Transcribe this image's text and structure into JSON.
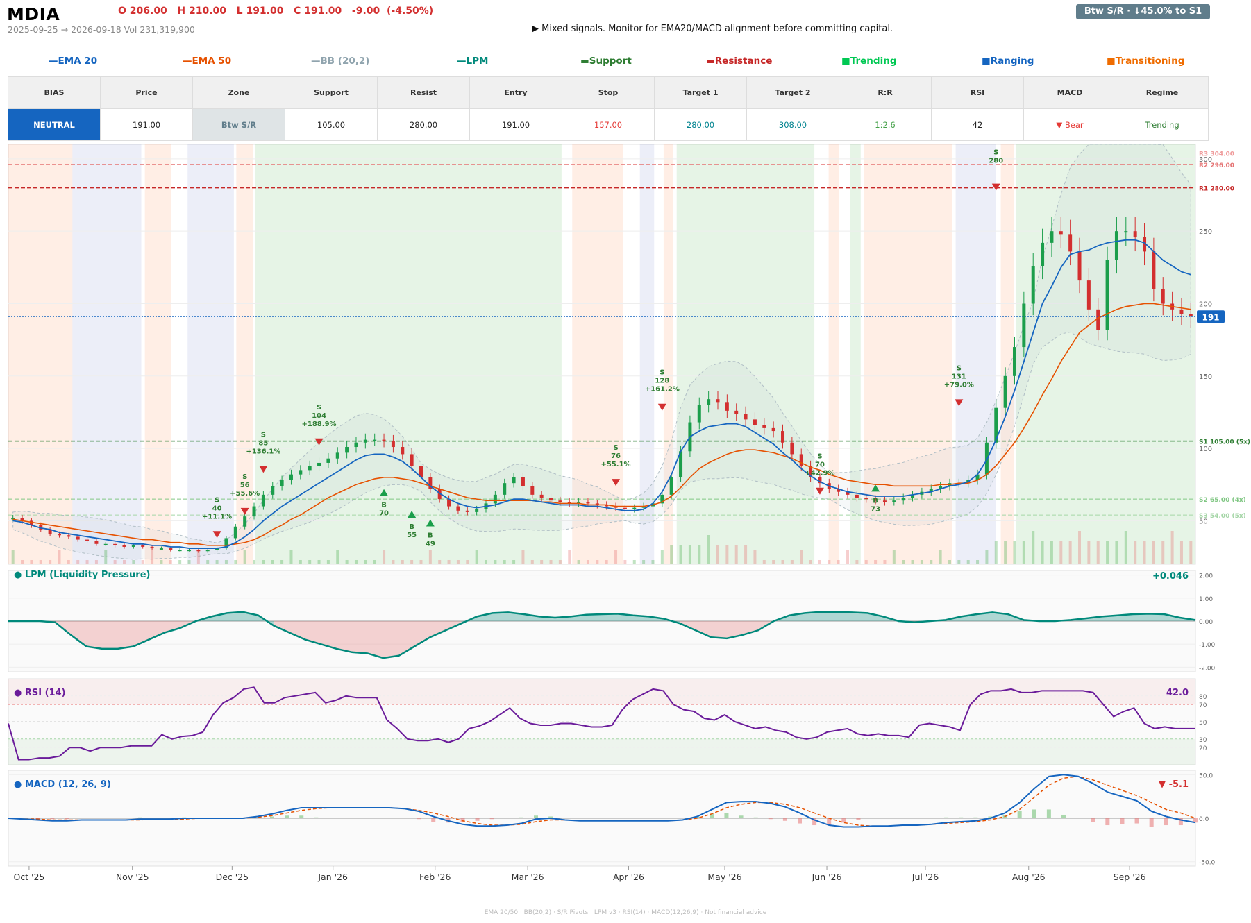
{
  "header": {
    "ticker": "MDIA",
    "ohlc": "O 206.00   H 210.00   L 191.00   C 191.00   -9.00  (-4.50%)",
    "date_range": "2025-09-25 → 2026-09-18   Vol 231,319,900",
    "signal": "▶  Mixed signals. Monitor for EMA20/MACD alignment before committing capital.",
    "badge": "Btw S/R  ·  ↓45.0% to S1"
  },
  "legend": [
    {
      "label": "EMA 20",
      "marker": "—",
      "color": "#1565c0"
    },
    {
      "label": "EMA 50",
      "marker": "—",
      "color": "#e65100"
    },
    {
      "label": "BB (20,2)",
      "marker": "—",
      "color": "#90a4ae"
    },
    {
      "label": "LPM",
      "marker": "—",
      "color": "#00897b"
    },
    {
      "label": "Support",
      "marker": "▬",
      "color": "#2e7d32"
    },
    {
      "label": "Resistance",
      "marker": "▬",
      "color": "#c62828"
    },
    {
      "label": "Trending",
      "marker": "■",
      "color": "#00c853"
    },
    {
      "label": "Ranging",
      "marker": "■",
      "color": "#1565c0"
    },
    {
      "label": "Transitioning",
      "marker": "■",
      "color": "#ef6c00"
    }
  ],
  "stats": {
    "headers": [
      "BIAS",
      "Price",
      "Zone",
      "Support",
      "Resist",
      "Entry",
      "Stop",
      "Target 1",
      "Target 2",
      "R:R",
      "RSI",
      "MACD",
      "Regime"
    ],
    "values": [
      "NEUTRAL",
      "191.00",
      "Btw S/R",
      "105.00",
      "280.00",
      "191.00",
      "157.00",
      "280.00",
      "308.00",
      "1:2.6",
      "42",
      "▼ Bear",
      "Trending"
    ],
    "value_colors": [
      "#ffffff",
      "#222222",
      "#607d8b",
      "#222222",
      "#222222",
      "#222222",
      "#e53935",
      "#00838f",
      "#00838f",
      "#43a047",
      "#222222",
      "#e53935",
      "#2e7d32"
    ],
    "bias_bg": "#1565c0",
    "zone_bg": "#dfe4e6"
  },
  "chart_data": [
    {
      "type": "candlestick",
      "panel": "price",
      "x_ticks": [
        "Oct '25",
        "Nov '25",
        "Dec '25",
        "Jan '26",
        "Feb '26",
        "Mar '26",
        "Apr '26",
        "May '26",
        "Jun '26",
        "Jul '26",
        "Aug '26",
        "Sep '26"
      ],
      "y_ticks": [
        "50",
        "100",
        "150",
        "200",
        "250",
        "300"
      ],
      "ylim": [
        20,
        310
      ],
      "last_price": 191,
      "last_price_label": "191",
      "levels": [
        {
          "label": "R3 304.00",
          "value": 304,
          "color": "#ef9a9a"
        },
        {
          "label": "R2 296.00",
          "value": 296,
          "color": "#e57373"
        },
        {
          "label": "R1 280.00",
          "value": 280,
          "color": "#c62828"
        },
        {
          "label": "S1 105.00 (5x)",
          "value": 105,
          "color": "#2e7d32"
        },
        {
          "label": "S2 65.00 (4x)",
          "value": 65,
          "color": "#81c784"
        },
        {
          "label": "S3 54.00 (5x)",
          "value": 54,
          "color": "#a5d6a7"
        }
      ],
      "regimes": [
        {
          "from": 0,
          "to": 0.054,
          "regime": "Transitioning"
        },
        {
          "from": 0.054,
          "to": 0.112,
          "regime": "Ranging"
        },
        {
          "from": 0.115,
          "to": 0.137,
          "regime": "Transitioning"
        },
        {
          "from": 0.151,
          "to": 0.19,
          "regime": "Ranging"
        },
        {
          "from": 0.192,
          "to": 0.206,
          "regime": "Transitioning"
        },
        {
          "from": 0.208,
          "to": 0.466,
          "regime": "Trending"
        },
        {
          "from": 0.475,
          "to": 0.518,
          "regime": "Transitioning"
        },
        {
          "from": 0.532,
          "to": 0.544,
          "regime": "Ranging"
        },
        {
          "from": 0.552,
          "to": 0.56,
          "regime": "Transitioning"
        },
        {
          "from": 0.563,
          "to": 0.679,
          "regime": "Trending"
        },
        {
          "from": 0.691,
          "to": 0.7,
          "regime": "Transitioning"
        },
        {
          "from": 0.709,
          "to": 0.718,
          "regime": "Trending"
        },
        {
          "from": 0.721,
          "to": 0.795,
          "regime": "Transitioning"
        },
        {
          "from": 0.798,
          "to": 0.832,
          "regime": "Ranging"
        },
        {
          "from": 0.836,
          "to": 0.847,
          "regime": "Transitioning"
        },
        {
          "from": 0.849,
          "to": 1.0,
          "regime": "Trending"
        }
      ],
      "close": [
        52,
        50,
        47,
        44,
        41,
        40,
        39,
        37,
        36,
        34,
        34,
        33,
        32,
        33,
        32,
        31,
        31,
        30,
        30,
        30,
        29,
        30,
        31,
        38,
        46,
        53,
        60,
        68,
        74,
        78,
        82,
        85,
        88,
        90,
        93,
        97,
        101,
        104,
        106,
        106,
        105,
        101,
        96,
        88,
        80,
        72,
        65,
        60,
        57,
        56,
        58,
        62,
        68,
        76,
        80,
        74,
        68,
        66,
        64,
        63,
        62,
        63,
        62,
        61,
        60,
        59,
        58,
        59,
        60,
        62,
        68,
        80,
        98,
        118,
        130,
        134,
        132,
        126,
        124,
        120,
        116,
        114,
        112,
        104,
        96,
        88,
        80,
        76,
        72,
        70,
        68,
        66,
        65,
        64,
        63,
        64,
        66,
        68,
        70,
        72,
        74,
        76,
        76,
        78,
        82,
        104,
        128,
        150,
        170,
        200,
        226,
        242,
        250,
        248,
        236,
        216,
        196,
        182,
        230,
        250,
        250,
        246,
        236,
        210,
        200,
        196,
        193,
        191
      ],
      "ema20": [
        50,
        49,
        47,
        45,
        44,
        42,
        41,
        40,
        39,
        38,
        37,
        36,
        35,
        34,
        34,
        33,
        33,
        32,
        32,
        31,
        31,
        31,
        31,
        32,
        35,
        39,
        44,
        50,
        55,
        60,
        64,
        68,
        72,
        76,
        80,
        84,
        88,
        92,
        95,
        96,
        96,
        94,
        91,
        86,
        80,
        74,
        69,
        65,
        62,
        60,
        59,
        60,
        61,
        63,
        65,
        65,
        64,
        63,
        62,
        61,
        61,
        61,
        60,
        60,
        59,
        58,
        57,
        57,
        58,
        62,
        70,
        82,
        98,
        108,
        112,
        115,
        116,
        117,
        117,
        115,
        111,
        107,
        103,
        97,
        92,
        86,
        81,
        77,
        74,
        72,
        70,
        69,
        68,
        67,
        67,
        67,
        67,
        68,
        69,
        70,
        72,
        74,
        75,
        77,
        82,
        92,
        106,
        122,
        140,
        160,
        180,
        200,
        212,
        225,
        234,
        236,
        237,
        240,
        242,
        243,
        244,
        244,
        242,
        236,
        230,
        226,
        222,
        220
      ],
      "ema50": [
        51,
        50,
        49,
        48,
        47,
        46,
        45,
        44,
        43,
        42,
        41,
        40,
        39,
        38,
        37,
        37,
        36,
        35,
        35,
        34,
        34,
        33,
        33,
        33,
        34,
        35,
        37,
        40,
        44,
        47,
        51,
        54,
        58,
        62,
        66,
        69,
        72,
        75,
        77,
        79,
        80,
        80,
        79,
        78,
        76,
        74,
        72,
        70,
        68,
        66,
        65,
        64,
        64,
        64,
        64,
        64,
        64,
        63,
        63,
        62,
        62,
        62,
        61,
        61,
        61,
        60,
        60,
        60,
        60,
        61,
        63,
        67,
        73,
        80,
        86,
        90,
        93,
        96,
        98,
        99,
        99,
        98,
        97,
        95,
        93,
        90,
        87,
        85,
        82,
        80,
        78,
        77,
        76,
        75,
        75,
        74,
        74,
        74,
        74,
        74,
        75,
        75,
        76,
        76,
        78,
        82,
        88,
        96,
        104,
        114,
        125,
        137,
        148,
        160,
        170,
        180,
        185,
        190,
        193,
        196,
        198,
        199,
        200,
        200,
        199,
        198,
        197,
        196
      ],
      "signals": [
        {
          "type": "S",
          "price": 40,
          "pct": "+11.1%"
        },
        {
          "type": "S",
          "price": 56,
          "pct": "+55.6%"
        },
        {
          "type": "S",
          "price": 85,
          "pct": "+136.1%"
        },
        {
          "type": "S",
          "price": 104,
          "pct": "+188.9%"
        },
        {
          "type": "B",
          "price": 70,
          "pct": ""
        },
        {
          "type": "B",
          "price": 55,
          "pct": ""
        },
        {
          "type": "B",
          "price": 49,
          "pct": ""
        },
        {
          "type": "S",
          "price": 76,
          "pct": "+55.1%"
        },
        {
          "type": "S",
          "price": 128,
          "pct": "+161.2%"
        },
        {
          "type": "S",
          "price": 70,
          "pct": "+42.9%"
        },
        {
          "type": "B",
          "price": 73,
          "pct": ""
        },
        {
          "type": "S",
          "price": 131,
          "pct": "+79.0%"
        },
        {
          "type": "S",
          "price": 280,
          "pct": ""
        }
      ]
    },
    {
      "type": "area",
      "panel": "lpm",
      "title": "LPM (Liquidity Pressure)",
      "value_label": "+0.046",
      "y_ticks": [
        "2.00",
        "1.00",
        "0.00",
        "-1.00",
        "-2.00"
      ],
      "ylim": [
        -2.2,
        2.2
      ],
      "values": [
        0,
        0,
        0,
        -0.05,
        -0.6,
        -1.1,
        -1.2,
        -1.2,
        -1.1,
        -0.8,
        -0.5,
        -0.3,
        0,
        0.2,
        0.35,
        0.4,
        0.25,
        -0.2,
        -0.5,
        -0.8,
        -1.0,
        -1.2,
        -1.35,
        -1.4,
        -1.6,
        -1.5,
        -1.1,
        -0.7,
        -0.4,
        -0.1,
        0.2,
        0.35,
        0.38,
        0.3,
        0.2,
        0.15,
        0.2,
        0.28,
        0.3,
        0.32,
        0.25,
        0.2,
        0.1,
        -0.1,
        -0.4,
        -0.7,
        -0.75,
        -0.6,
        -0.4,
        0,
        0.25,
        0.35,
        0.4,
        0.4,
        0.38,
        0.35,
        0.2,
        0,
        -0.05,
        0,
        0.05,
        0.2,
        0.3,
        0.38,
        0.3,
        0.05,
        0,
        0,
        0.05,
        0.12,
        0.2,
        0.25,
        0.3,
        0.32,
        0.3,
        0.15,
        0.05
      ]
    },
    {
      "type": "line",
      "panel": "rsi",
      "title": "RSI (14)",
      "value_label": "42.0",
      "y_ticks": [
        "80",
        "70",
        "50",
        "30",
        "20"
      ],
      "ylim": [
        0,
        100
      ],
      "values": [
        48,
        6,
        6,
        8,
        8,
        10,
        20,
        20,
        16,
        20,
        20,
        20,
        22,
        22,
        22,
        35,
        30,
        33,
        34,
        38,
        58,
        72,
        78,
        88,
        90,
        72,
        72,
        78,
        80,
        82,
        84,
        72,
        75,
        80,
        78,
        78,
        78,
        52,
        42,
        30,
        28,
        28,
        30,
        26,
        30,
        42,
        45,
        50,
        58,
        66,
        54,
        48,
        46,
        46,
        48,
        48,
        46,
        44,
        44,
        46,
        64,
        76,
        82,
        88,
        86,
        70,
        64,
        62,
        54,
        52,
        58,
        50,
        46,
        42,
        44,
        40,
        38,
        32,
        30,
        32,
        38,
        40,
        42,
        36,
        34,
        36,
        34,
        34,
        32,
        46,
        48,
        46,
        44,
        40,
        70,
        82,
        86,
        86,
        88,
        84,
        84,
        86,
        86,
        86,
        86,
        86,
        84,
        70,
        56,
        62,
        66,
        48,
        42,
        44,
        42,
        42,
        42
      ],
      "overbought": 70,
      "oversold": 30
    },
    {
      "type": "line",
      "panel": "macd",
      "title": "MACD (12, 26, 9)",
      "value_label": "▼ -5.1",
      "y_ticks": [
        "50.0",
        "0.0",
        "-50.0"
      ],
      "ylim": [
        -55,
        55
      ],
      "macd": [
        0,
        -1,
        -2,
        -3,
        -3,
        -2,
        -2,
        -2,
        -2,
        -1,
        -1,
        -1,
        0,
        0,
        0,
        0,
        0,
        2,
        5,
        9,
        12,
        12,
        12,
        12,
        12,
        12,
        12,
        11,
        8,
        2,
        -3,
        -7,
        -9,
        -9,
        -8,
        -6,
        -1,
        0,
        -2,
        -3,
        -3,
        -3,
        -3,
        -3,
        -3,
        -3,
        -2,
        2,
        10,
        18,
        19,
        19,
        17,
        13,
        6,
        -2,
        -8,
        -10,
        -10,
        -9,
        -9,
        -8,
        -8,
        -7,
        -5,
        -4,
        -3,
        0,
        6,
        18,
        34,
        48,
        50,
        48,
        40,
        30,
        25,
        20,
        8,
        2,
        -2,
        -5
      ],
      "signal_line": [
        0,
        -1,
        -1,
        -2,
        -2,
        -2,
        -2,
        -2,
        -2,
        -2,
        -1,
        -1,
        -1,
        0,
        0,
        0,
        0,
        1,
        3,
        6,
        9,
        11,
        12,
        12,
        12,
        12,
        12,
        11,
        9,
        6,
        2,
        -3,
        -6,
        -8,
        -8,
        -7,
        -4,
        -2,
        -2,
        -3,
        -3,
        -3,
        -3,
        -3,
        -3,
        -3,
        -2,
        0,
        5,
        12,
        16,
        18,
        18,
        16,
        12,
        6,
        0,
        -5,
        -8,
        -9,
        -9,
        -8,
        -8,
        -7,
        -6,
        -5,
        -4,
        -2,
        2,
        10,
        24,
        38,
        46,
        48,
        44,
        38,
        32,
        26,
        18,
        10,
        6,
        0
      ]
    }
  ],
  "footer": "EMA 20/50  ·  BB(20,2)  ·  S/R Pivots  ·  LPM v3  ·  RSI(14)  ·  MACD(12,26,9)  ·  Not financial advice"
}
